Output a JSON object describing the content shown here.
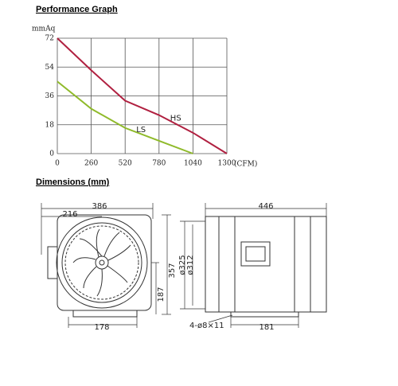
{
  "sections": {
    "performance_title": "Performance Graph",
    "dimensions_title": "Dimensions (mm)"
  },
  "chart_data": {
    "type": "line",
    "y_label": "mmAq",
    "x_label": "(CFM)",
    "x": [
      0,
      260,
      520,
      780,
      1040,
      1300
    ],
    "series": [
      {
        "name": "HS",
        "color": "#b02040",
        "values": [
          72,
          52,
          33,
          24,
          13,
          0
        ]
      },
      {
        "name": "LS",
        "color": "#8fba2a",
        "values": [
          45,
          28,
          16,
          8,
          0,
          null
        ]
      }
    ],
    "xlim": [
      0,
      1300
    ],
    "ylim": [
      0,
      72
    ],
    "xticks": [
      0,
      260,
      520,
      780,
      1040,
      1300
    ],
    "yticks": [
      0,
      18,
      36,
      54,
      72
    ],
    "grid": true
  },
  "dimensions": {
    "front": {
      "width": 386,
      "offset": 216,
      "height": 357,
      "center_height": 187,
      "base": 178
    },
    "side": {
      "length": 446,
      "outer_diameter": "ø325",
      "inner_diameter": "ø312",
      "holes": "4-ø8×11",
      "base": 181
    }
  }
}
